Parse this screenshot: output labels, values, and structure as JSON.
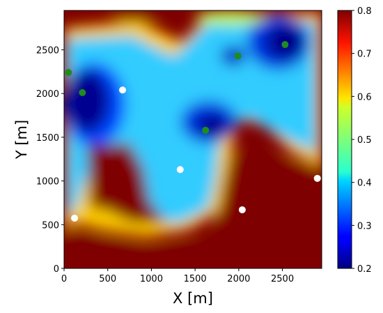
{
  "chart_data": {
    "type": "heatmap",
    "title": "",
    "xlabel": "X [m]",
    "ylabel": "Y [m]",
    "xlim": [
      0,
      2950
    ],
    "ylim": [
      0,
      2950
    ],
    "x_ticks": [
      0,
      500,
      1000,
      1500,
      2000,
      2500
    ],
    "y_ticks": [
      0,
      500,
      1000,
      1500,
      2000,
      2500
    ],
    "colormap": "jet",
    "colorbar": {
      "vmin": 0.2,
      "vmax": 0.8,
      "ticks": [
        "0.2",
        "0.3",
        "0.4",
        "0.5",
        "0.6",
        "0.7",
        "0.8"
      ]
    },
    "field_description_regions": [
      {
        "kind": "low",
        "center": [
          250,
          2150
        ],
        "value": 0.2
      },
      {
        "kind": "low",
        "center": [
          1700,
          1600
        ],
        "value": 0.22
      },
      {
        "kind": "low",
        "center": [
          2350,
          2500
        ],
        "value": 0.22
      },
      {
        "kind": "low",
        "center": [
          2000,
          2400
        ],
        "value": 0.25
      }
    ],
    "series": [
      {
        "color": "#1f8c1f",
        "points": [
          {
            "x": 50,
            "y": 2240
          },
          {
            "x": 210,
            "y": 2010
          },
          {
            "x": 1620,
            "y": 1580
          },
          {
            "x": 1990,
            "y": 2430
          },
          {
            "x": 2530,
            "y": 2560
          }
        ]
      },
      {
        "color": "#ffffff",
        "points": [
          {
            "x": 670,
            "y": 2040
          },
          {
            "x": 1330,
            "y": 1130
          },
          {
            "x": 2040,
            "y": 670
          },
          {
            "x": 2900,
            "y": 1030
          },
          {
            "x": 120,
            "y": 575
          }
        ]
      }
    ]
  }
}
